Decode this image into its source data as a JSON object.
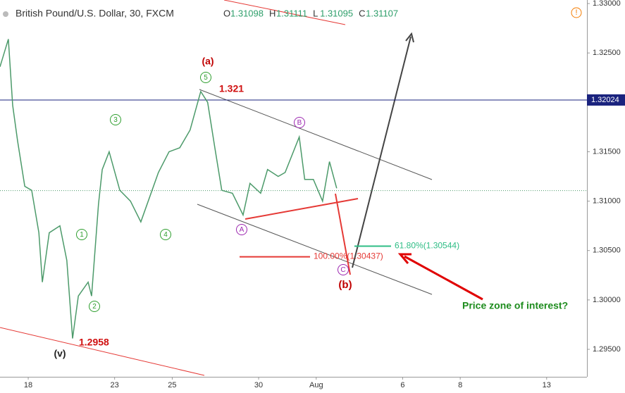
{
  "chart_data": {
    "type": "line",
    "title": "British Pound/U.S. Dollar, 30, FXCM",
    "ohlc": [
      {
        "label": "O",
        "value": 1.31098
      },
      {
        "label": "H",
        "value": 1.31111
      },
      {
        "label": "L",
        "value": 1.31095
      },
      {
        "label": "C",
        "value": 1.31107
      }
    ],
    "x": [
      -0.98,
      -0.69,
      -0.54,
      -0.37,
      -0.12,
      0.12,
      0.37,
      0.49,
      0.73,
      1.1,
      1.34,
      1.54,
      1.74,
      2.08,
      2.2,
      2.44,
      2.57,
      2.81,
      3.18,
      3.55,
      3.91,
      4.52,
      4.89,
      5.26,
      5.62,
      5.99,
      6.23,
      6.48,
      6.72,
      7.09,
      7.46,
      7.7,
      8.07,
      8.31,
      8.68,
      8.92,
      9.41,
      9.6,
      9.9,
      10.22,
      10.46,
      10.71
    ],
    "values": [
      1.3236,
      1.3264,
      1.3197,
      1.3161,
      1.3115,
      1.3111,
      1.3068,
      1.3018,
      1.3068,
      1.3075,
      1.304,
      1.2961,
      1.3004,
      1.3018,
      1.3004,
      1.3097,
      1.3132,
      1.315,
      1.3111,
      1.31,
      1.3079,
      1.3129,
      1.315,
      1.3154,
      1.3172,
      1.3211,
      1.32,
      1.3154,
      1.3111,
      1.3108,
      1.3086,
      1.3118,
      1.3108,
      1.3132,
      1.3125,
      1.3129,
      1.3165,
      1.3122,
      1.3122,
      1.31,
      1.314,
      1.3113
    ],
    "color": "#4c9a6a",
    "xlim": [
      -0.98,
      19.4
    ],
    "xticks": [
      {
        "value": 0,
        "label": "18"
      },
      {
        "value": 3,
        "label": "23"
      },
      {
        "value": 5,
        "label": "25"
      },
      {
        "value": 8,
        "label": "30"
      },
      {
        "value": 10,
        "label": "Aug"
      },
      {
        "value": 13,
        "label": "6"
      },
      {
        "value": 15,
        "label": "8"
      },
      {
        "value": 18,
        "label": "13"
      }
    ],
    "ylim": [
      1.29222,
      1.33036
    ],
    "yticks": [
      {
        "value": 1.295,
        "label": "1.29500"
      },
      {
        "value": 1.3,
        "label": "1.30000"
      },
      {
        "value": 1.305,
        "label": "1.30500"
      },
      {
        "value": 1.31,
        "label": "1.31000"
      },
      {
        "value": 1.315,
        "label": "1.31500"
      },
      {
        "value": 1.32,
        "label": "1.32000"
      },
      {
        "value": 1.325,
        "label": "1.32500"
      },
      {
        "value": 1.33,
        "label": "1.33000"
      }
    ],
    "hline": {
      "value": 1.32024,
      "color": "#1a237e"
    },
    "fib": [
      {
        "label": "61.80%(1.30544)",
        "price": 1.30544,
        "color": "#2ebd85"
      },
      {
        "label": "100.00%(1.30437)",
        "price": 1.30437,
        "color": "#e53935"
      }
    ],
    "annotations": [
      {
        "text": "(a)",
        "color": "#c00000"
      },
      {
        "text": "1.321",
        "color": "#d01010"
      },
      {
        "text": "1.2958",
        "color": "#d01010"
      },
      {
        "text": "(v)",
        "color": "#222222"
      },
      {
        "text": "(b)",
        "color": "#c00000"
      },
      {
        "text": "Price zone of interest?",
        "color": "#1e8c1e"
      }
    ],
    "wave_labels": [
      {
        "text": "5",
        "color": "#2e9e2e"
      },
      {
        "text": "3",
        "color": "#2e9e2e"
      },
      {
        "text": "1",
        "color": "#2e9e2e"
      },
      {
        "text": "4",
        "color": "#2e9e2e"
      },
      {
        "text": "2",
        "color": "#2e9e2e"
      },
      {
        "text": "A",
        "color": "#9c27b0"
      },
      {
        "text": "B",
        "color": "#9c27b0"
      },
      {
        "text": "C",
        "color": "#9c27b0"
      }
    ]
  }
}
